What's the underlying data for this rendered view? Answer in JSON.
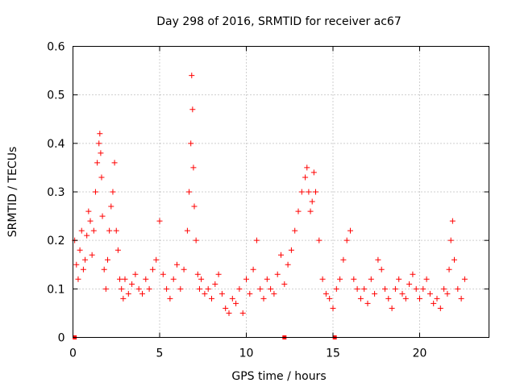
{
  "chart_data": {
    "type": "scatter",
    "title": "Day 298 of 2016, SRMTID for receiver ac67",
    "xlabel": "GPS time / hours",
    "ylabel": "SRMTID / TECUs",
    "xlim": [
      0,
      24
    ],
    "ylim": [
      0,
      0.6
    ],
    "xticks": [
      0,
      5,
      10,
      15,
      20
    ],
    "xtick_labels": [
      "0",
      "5",
      "10",
      "15",
      "20"
    ],
    "yticks": [
      0,
      0.1,
      0.2,
      0.3,
      0.4,
      0.5,
      0.6
    ],
    "ytick_labels": [
      "0",
      "0.1",
      "0.2",
      "0.3",
      "0.4",
      "0.5",
      "0.6"
    ],
    "grid": true,
    "marker": "plus",
    "color": "#ff0000",
    "series": [
      {
        "name": "SRMTID",
        "x": [
          0.1,
          0.2,
          0.3,
          0.4,
          0.5,
          0.6,
          0.7,
          0.8,
          0.9,
          1.0,
          1.1,
          1.2,
          1.3,
          1.4,
          1.5,
          1.55,
          1.6,
          1.65,
          1.7,
          1.8,
          1.9,
          2.0,
          2.1,
          2.2,
          2.3,
          2.4,
          2.5,
          2.6,
          2.7,
          2.8,
          2.9,
          3.0,
          3.2,
          3.4,
          3.6,
          3.8,
          4.0,
          4.2,
          4.4,
          4.6,
          4.8,
          5.0,
          5.2,
          5.4,
          5.6,
          5.8,
          6.0,
          6.2,
          6.4,
          6.6,
          6.7,
          6.8,
          6.85,
          6.9,
          6.95,
          7.0,
          7.1,
          7.2,
          7.3,
          7.4,
          7.6,
          7.8,
          8.0,
          8.2,
          8.4,
          8.6,
          8.8,
          9.0,
          9.2,
          9.4,
          9.6,
          9.8,
          10.0,
          10.2,
          10.4,
          10.6,
          10.8,
          11.0,
          11.2,
          11.4,
          11.6,
          11.8,
          12.0,
          12.2,
          12.4,
          12.6,
          12.8,
          13.0,
          13.2,
          13.4,
          13.5,
          13.6,
          13.7,
          13.8,
          13.9,
          14.0,
          14.2,
          14.4,
          14.6,
          14.8,
          15.0,
          15.2,
          15.4,
          15.6,
          15.8,
          16.0,
          16.2,
          16.4,
          16.6,
          16.8,
          17.0,
          17.2,
          17.4,
          17.6,
          17.8,
          18.0,
          18.2,
          18.4,
          18.6,
          18.8,
          19.0,
          19.2,
          19.4,
          19.6,
          19.8,
          20.0,
          20.2,
          20.4,
          20.6,
          20.8,
          21.0,
          21.2,
          21.4,
          21.6,
          21.7,
          21.8,
          21.9,
          22.0,
          22.2,
          22.4,
          22.6
        ],
        "y": [
          0.2,
          0.15,
          0.12,
          0.18,
          0.22,
          0.14,
          0.16,
          0.21,
          0.26,
          0.24,
          0.17,
          0.22,
          0.3,
          0.36,
          0.4,
          0.42,
          0.38,
          0.33,
          0.25,
          0.14,
          0.1,
          0.16,
          0.22,
          0.27,
          0.3,
          0.36,
          0.22,
          0.18,
          0.12,
          0.1,
          0.08,
          0.12,
          0.09,
          0.11,
          0.13,
          0.1,
          0.09,
          0.12,
          0.1,
          0.14,
          0.16,
          0.24,
          0.13,
          0.1,
          0.08,
          0.12,
          0.15,
          0.1,
          0.14,
          0.22,
          0.3,
          0.4,
          0.54,
          0.47,
          0.35,
          0.27,
          0.2,
          0.13,
          0.1,
          0.12,
          0.09,
          0.1,
          0.08,
          0.11,
          0.13,
          0.09,
          0.06,
          0.05,
          0.08,
          0.07,
          0.1,
          0.05,
          0.12,
          0.09,
          0.14,
          0.2,
          0.1,
          0.08,
          0.12,
          0.1,
          0.09,
          0.13,
          0.17,
          0.11,
          0.15,
          0.18,
          0.22,
          0.26,
          0.3,
          0.33,
          0.35,
          0.3,
          0.26,
          0.28,
          0.34,
          0.3,
          0.2,
          0.12,
          0.09,
          0.08,
          0.06,
          0.1,
          0.12,
          0.16,
          0.2,
          0.22,
          0.12,
          0.1,
          0.08,
          0.1,
          0.07,
          0.12,
          0.09,
          0.16,
          0.14,
          0.1,
          0.08,
          0.06,
          0.1,
          0.12,
          0.09,
          0.08,
          0.11,
          0.13,
          0.1,
          0.08,
          0.1,
          0.12,
          0.09,
          0.07,
          0.08,
          0.06,
          0.1,
          0.09,
          0.14,
          0.2,
          0.24,
          0.16,
          0.1,
          0.08,
          0.12
        ],
        "zero_markers_x": [
          0.1,
          12.2,
          15.1
        ]
      }
    ]
  }
}
